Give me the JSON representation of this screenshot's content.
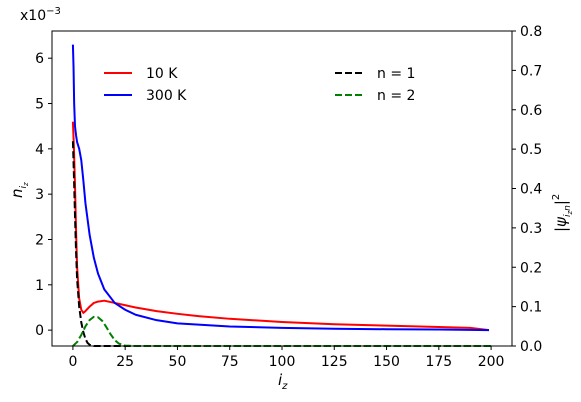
{
  "chart_data": {
    "type": "line",
    "xlabel": "i",
    "xlabel_sub": "z",
    "ylabel_left": "n",
    "ylabel_left_sub": "i",
    "ylabel_left_subsub": "z",
    "ylabel_right": "|ψ",
    "ylabel_right_sub": "i",
    "ylabel_right_subsub": "z",
    "ylabel_right_sub2": "n",
    "ylabel_right_tail": "|",
    "ylabel_right_sup": "2",
    "left_multiplier_base": "x10",
    "left_multiplier_exp": "−3",
    "x_ticks": [
      "0",
      "25",
      "50",
      "75",
      "100",
      "125",
      "150",
      "175",
      "200"
    ],
    "y_left_ticks": [
      "0",
      "1",
      "2",
      "3",
      "4",
      "5",
      "6"
    ],
    "y_right_ticks": [
      "0.0",
      "0.1",
      "0.2",
      "0.3",
      "0.4",
      "0.5",
      "0.6",
      "0.7",
      "0.8"
    ],
    "xlim": [
      -10,
      210
    ],
    "ylim_left": [
      -0.35,
      6.6
    ],
    "ylim_right": [
      0,
      0.8
    ],
    "legend_left_placement": "upper-left",
    "legend_right_placement": "upper-right",
    "series": [
      {
        "name": "10 K",
        "axis": "left",
        "color": "#ff0000",
        "dash": "solid",
        "x": [
          0,
          0.5,
          1,
          1.5,
          2,
          3,
          4,
          5,
          6,
          8,
          10,
          12,
          15,
          20,
          30,
          40,
          50,
          60,
          75,
          100,
          125,
          150,
          175,
          190,
          199
        ],
        "y": [
          4.6,
          4.0,
          3.2,
          2.2,
          1.4,
          0.7,
          0.45,
          0.38,
          0.42,
          0.52,
          0.6,
          0.63,
          0.65,
          0.6,
          0.5,
          0.42,
          0.36,
          0.31,
          0.25,
          0.18,
          0.13,
          0.1,
          0.07,
          0.05,
          0.0
        ]
      },
      {
        "name": "300 K",
        "axis": "left",
        "color": "#0000ff",
        "dash": "solid",
        "x": [
          0,
          0.3,
          0.6,
          1,
          1.5,
          2,
          3,
          4,
          5,
          6,
          8,
          10,
          12,
          15,
          20,
          25,
          30,
          40,
          50,
          75,
          100,
          125,
          150,
          175,
          199
        ],
        "y": [
          6.3,
          5.8,
          5.0,
          4.5,
          4.3,
          4.15,
          4.0,
          3.75,
          3.3,
          2.8,
          2.1,
          1.6,
          1.25,
          0.9,
          0.6,
          0.45,
          0.34,
          0.22,
          0.15,
          0.08,
          0.05,
          0.03,
          0.02,
          0.015,
          0.0
        ]
      },
      {
        "name": "n = 1",
        "axis": "right",
        "color": "#000000",
        "dash": "dashed",
        "x": [
          0,
          0.5,
          1,
          1.5,
          2,
          3,
          4,
          5,
          6,
          7,
          8,
          10,
          12,
          15,
          25,
          50,
          100,
          150,
          200
        ],
        "y": [
          0.52,
          0.43,
          0.33,
          0.24,
          0.17,
          0.1,
          0.06,
          0.035,
          0.018,
          0.008,
          0.003,
          0.0,
          0.0,
          0.0,
          0.0,
          0.0,
          0.0,
          0.0,
          0.0
        ]
      },
      {
        "name": "n = 2",
        "axis": "right",
        "color": "#008000",
        "dash": "dashed",
        "x": [
          0,
          2,
          4,
          6,
          8,
          10,
          12,
          14,
          16,
          18,
          20,
          22,
          25,
          30,
          50,
          100,
          150,
          200
        ],
        "y": [
          0.0,
          0.01,
          0.028,
          0.05,
          0.066,
          0.074,
          0.073,
          0.064,
          0.048,
          0.03,
          0.015,
          0.006,
          0.001,
          0.0,
          0.0,
          0.0,
          0.0,
          0.0
        ]
      }
    ]
  }
}
